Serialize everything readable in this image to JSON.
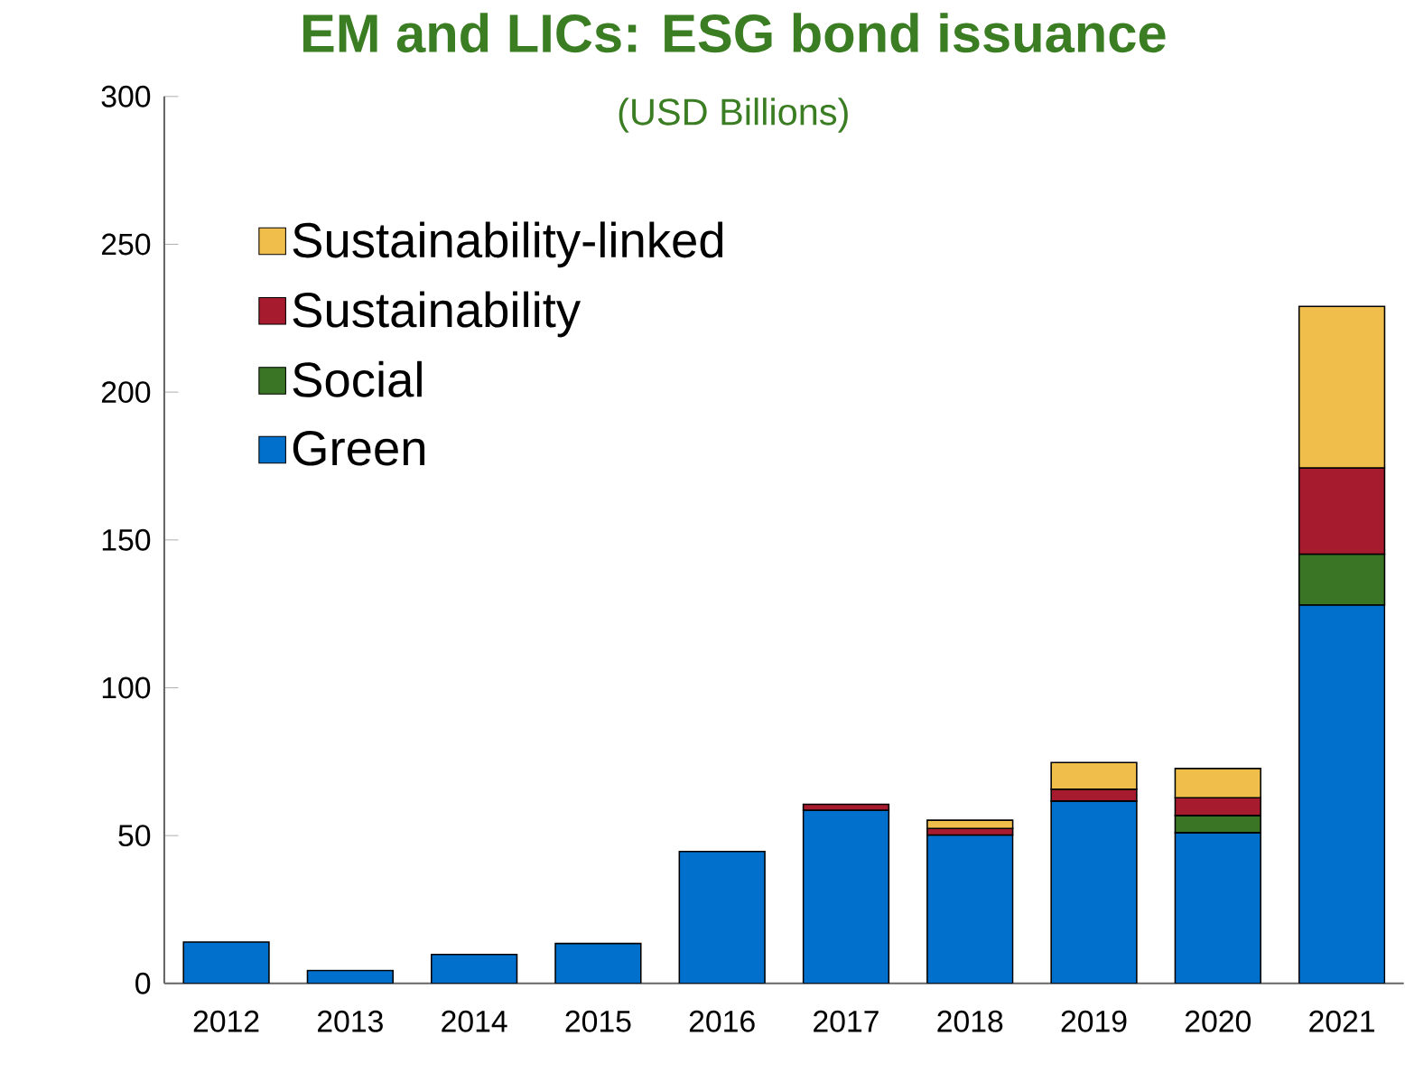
{
  "chart_data": {
    "type": "bar",
    "title": "EM and LICs: ESG bond issuance",
    "subtitle": "(USD Billions)",
    "categories": [
      "2012",
      "2013",
      "2014",
      "2015",
      "2016",
      "2017",
      "2018",
      "2019",
      "2020",
      "2021"
    ],
    "stacked": true,
    "series": [
      {
        "name": "Green",
        "color": "#0070cc",
        "values": [
          14,
          4.4,
          9.8,
          13.5,
          44.6,
          58.6,
          50.2,
          61.7,
          51,
          128
        ]
      },
      {
        "name": "Social",
        "color": "#3a7526",
        "values": [
          null,
          null,
          null,
          null,
          null,
          null,
          null,
          null,
          5.8,
          17.2
        ]
      },
      {
        "name": "Sustainability",
        "color": "#a61b2e",
        "values": [
          null,
          null,
          null,
          null,
          null,
          2,
          2.2,
          4,
          6,
          29.2
        ]
      },
      {
        "name": "Sustainability-linked",
        "color": "#f0be4b",
        "values": [
          null,
          null,
          null,
          null,
          null,
          null,
          2.8,
          9,
          9.9,
          54.6
        ]
      }
    ],
    "ylim": [
      0,
      300
    ],
    "yticks": [
      0,
      50,
      100,
      150,
      200,
      250,
      300
    ],
    "legend": "top left"
  }
}
